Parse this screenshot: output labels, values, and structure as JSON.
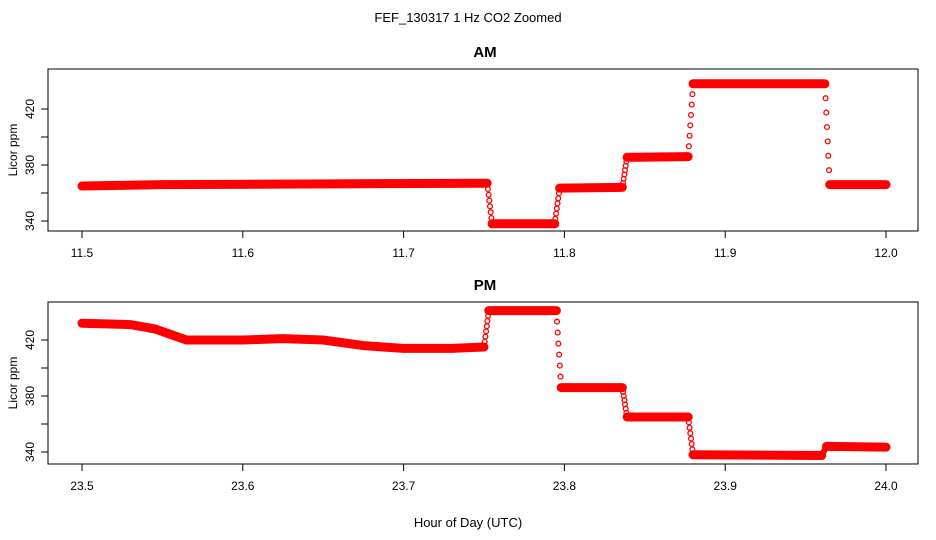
{
  "title": "FEF_130317  1 Hz CO2 Zoomed",
  "xlabel": "Hour of Day (UTC)",
  "point_color": "#ff0000",
  "chart_data": [
    {
      "type": "scatter",
      "title": "AM",
      "ylabel": "Licor ppm",
      "xlim": [
        11.5,
        12.0
      ],
      "ylim": [
        336,
        446
      ],
      "xticks": [
        "11.5",
        "11.6",
        "11.7",
        "11.8",
        "11.9",
        "12.0"
      ],
      "yticks": [
        "340",
        "380",
        "420"
      ],
      "yminor": [
        360,
        400
      ],
      "segments": [
        {
          "x": [
            11.5,
            11.55
          ],
          "y": [
            365,
            366
          ]
        },
        {
          "x": [
            11.55,
            11.752
          ],
          "y": [
            366,
            367
          ]
        },
        {
          "x": [
            11.755,
            11.794
          ],
          "y": [
            338,
            338
          ]
        },
        {
          "x": [
            11.797,
            11.836
          ],
          "y": [
            363.5,
            364
          ]
        },
        {
          "x": [
            11.839,
            11.877
          ],
          "y": [
            385.5,
            386
          ]
        },
        {
          "x": [
            11.88,
            11.962
          ],
          "y": [
            438,
            438
          ]
        },
        {
          "x": [
            11.965,
            12.0
          ],
          "y": [
            366,
            366
          ]
        }
      ],
      "transitions": [
        {
          "x": [
            11.752,
            11.755
          ],
          "y": [
            367,
            338
          ]
        },
        {
          "x": [
            11.794,
            11.797
          ],
          "y": [
            338,
            363.5
          ]
        },
        {
          "x": [
            11.836,
            11.839
          ],
          "y": [
            364,
            385.5
          ]
        },
        {
          "x": [
            11.877,
            11.88
          ],
          "y": [
            386,
            438
          ]
        },
        {
          "x": [
            11.962,
            11.965
          ],
          "y": [
            438,
            366
          ]
        }
      ]
    },
    {
      "type": "scatter",
      "title": "PM",
      "ylabel": "Licor ppm",
      "xlim": [
        23.5,
        24.0
      ],
      "ylim": [
        336,
        446
      ],
      "xticks": [
        "23.5",
        "23.6",
        "23.7",
        "23.8",
        "23.9",
        "24.0"
      ],
      "yticks": [
        "340",
        "380",
        "420"
      ],
      "yminor": [
        360,
        400
      ],
      "segments": [
        {
          "x": [
            23.5,
            23.53,
            23.545,
            23.565,
            23.6,
            23.625,
            23.65,
            23.675,
            23.7,
            23.73,
            23.75
          ],
          "y": [
            432,
            431,
            428,
            420,
            420,
            421,
            420,
            416,
            414,
            414,
            415
          ]
        },
        {
          "x": [
            23.753,
            23.795
          ],
          "y": [
            441,
            441
          ]
        },
        {
          "x": [
            23.798,
            23.836
          ],
          "y": [
            386,
            386
          ]
        },
        {
          "x": [
            23.839,
            23.877
          ],
          "y": [
            365,
            365
          ]
        },
        {
          "x": [
            23.88,
            23.96
          ],
          "y": [
            338,
            337.5
          ]
        },
        {
          "x": [
            23.963,
            24.0
          ],
          "y": [
            344,
            343.5
          ]
        }
      ],
      "transitions": [
        {
          "x": [
            23.75,
            23.753
          ],
          "y": [
            415,
            441
          ]
        },
        {
          "x": [
            23.795,
            23.798
          ],
          "y": [
            441,
            386
          ]
        },
        {
          "x": [
            23.836,
            23.839
          ],
          "y": [
            386,
            365
          ]
        },
        {
          "x": [
            23.877,
            23.88
          ],
          "y": [
            365,
            338
          ]
        },
        {
          "x": [
            23.96,
            23.963
          ],
          "y": [
            337.5,
            344
          ]
        }
      ]
    }
  ]
}
